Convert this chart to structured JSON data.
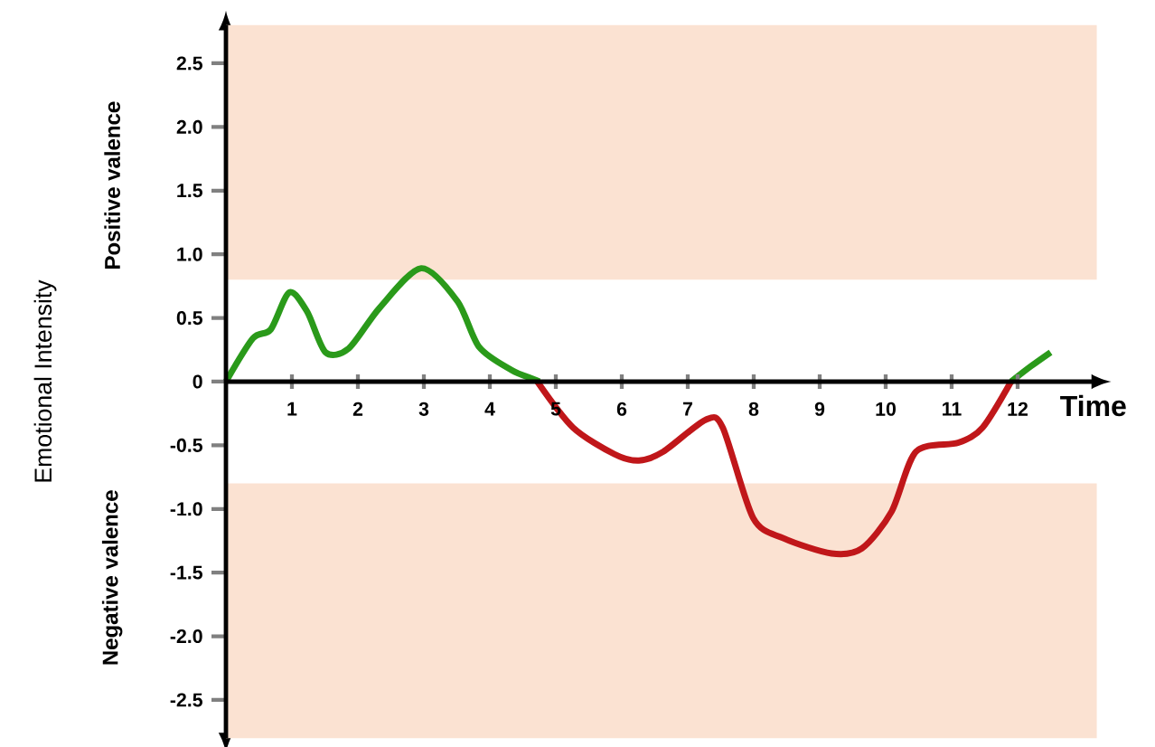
{
  "chart_data": {
    "type": "line",
    "xlabel": "Time",
    "ylabel": "Emotional Intensity",
    "annotations": [
      "Positive valence",
      "Negative valence"
    ],
    "xlim": [
      0,
      13.2
    ],
    "ylim": [
      -2.8,
      2.8
    ],
    "xticks": [
      1,
      2,
      3,
      4,
      5,
      6,
      7,
      8,
      9,
      10,
      11,
      12
    ],
    "yticks": [
      -2.5,
      {
        "value": -2,
        "label": "-2.0"
      },
      -1.5,
      {
        "value": -1,
        "label": "-1.0"
      },
      -0.5,
      0,
      0.5,
      {
        "value": 1,
        "label": "1.0"
      },
      1.5,
      {
        "value": 2,
        "label": "2.0"
      },
      2.5
    ],
    "grid": false,
    "marker": "none",
    "line_style": "solid",
    "bands": [
      {
        "axis": "y",
        "from": 0.8,
        "to": 2.8,
        "color": "#fbe2d2"
      },
      {
        "axis": "y",
        "from": -2.8,
        "to": -0.8,
        "color": "#fbe2d2"
      }
    ],
    "series": [
      {
        "color": "#2a9a1a",
        "x": [
          0,
          0.41,
          0.68,
          0.96,
          1.23,
          1.51,
          1.86,
          2.33,
          2.96,
          3.51,
          3.84,
          4.33,
          4.66,
          4.75
        ],
        "values": [
          0,
          0.34,
          0.41,
          0.7,
          0.55,
          0.23,
          0.26,
          0.58,
          0.89,
          0.63,
          0.27,
          0.09,
          0.02,
          0
        ]
      },
      {
        "color": "#c0171a",
        "x": [
          4.72,
          5.26,
          5.89,
          6.26,
          6.63,
          7.27,
          7.53,
          7.99,
          8.45,
          9.18,
          9.64,
          10.09,
          10.46,
          11.1,
          11.47,
          11.9
        ],
        "values": [
          0,
          -0.36,
          -0.57,
          -0.62,
          -0.55,
          -0.3,
          -0.36,
          -1.07,
          -1.23,
          -1.35,
          -1.31,
          -1.02,
          -0.55,
          -0.48,
          -0.36,
          0
        ]
      },
      {
        "color": "#2a9a1a",
        "x": [
          11.9,
          12.2,
          12.5
        ],
        "values": [
          0,
          0.12,
          0.23
        ]
      }
    ]
  }
}
